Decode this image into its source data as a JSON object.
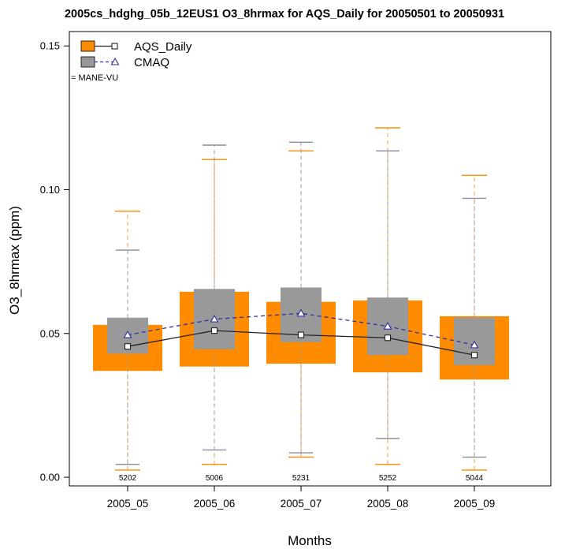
{
  "chart_data": {
    "type": "boxplot",
    "title": "2005cs_hdghg_05b_12EUS1 O3_8hrmax for AQS_Daily for 20050501 to 20050931",
    "xlabel": "Months",
    "ylabel": "O3_8hrmax (ppm)",
    "ylim": [
      -0.003,
      0.155
    ],
    "yticks": [
      0.0,
      0.05,
      0.1,
      0.15
    ],
    "ytick_labels": [
      "0.00",
      "0.05",
      "0.10",
      "0.15"
    ],
    "categories": [
      "2005_05",
      "2005_06",
      "2005_07",
      "2005_08",
      "2005_09"
    ],
    "counts": [
      "5202",
      "5006",
      "5231",
      "5252",
      "5044"
    ],
    "region_note": "= MANE-VU",
    "legend_position": "top-left",
    "series": [
      {
        "name": "AQS_Daily",
        "box_color": "#ff8c00",
        "line_color": "#222222",
        "marker": "square",
        "whisker_low": [
          0.0025,
          0.0045,
          0.007,
          0.0045,
          0.0025
        ],
        "q1": [
          0.037,
          0.0385,
          0.0395,
          0.0365,
          0.034
        ],
        "median": [
          0.0455,
          0.051,
          0.0495,
          0.0485,
          0.0425
        ],
        "q3": [
          0.053,
          0.0645,
          0.061,
          0.0615,
          0.056
        ],
        "whisker_high": [
          0.0925,
          0.1105,
          0.1135,
          0.1215,
          0.105
        ]
      },
      {
        "name": "CMAQ",
        "box_color": "#999999",
        "line_color": "#3030a0",
        "marker": "triangle",
        "whisker_low": [
          0.0045,
          0.0095,
          0.0085,
          0.0135,
          0.007
        ],
        "q1": [
          0.043,
          0.0445,
          0.047,
          0.0425,
          0.039
        ],
        "median": [
          0.0495,
          0.055,
          0.057,
          0.0525,
          0.046
        ],
        "q3": [
          0.0555,
          0.0655,
          0.066,
          0.0625,
          0.0555
        ],
        "whisker_high": [
          0.079,
          0.1155,
          0.1165,
          0.1135,
          0.097
        ]
      }
    ]
  }
}
